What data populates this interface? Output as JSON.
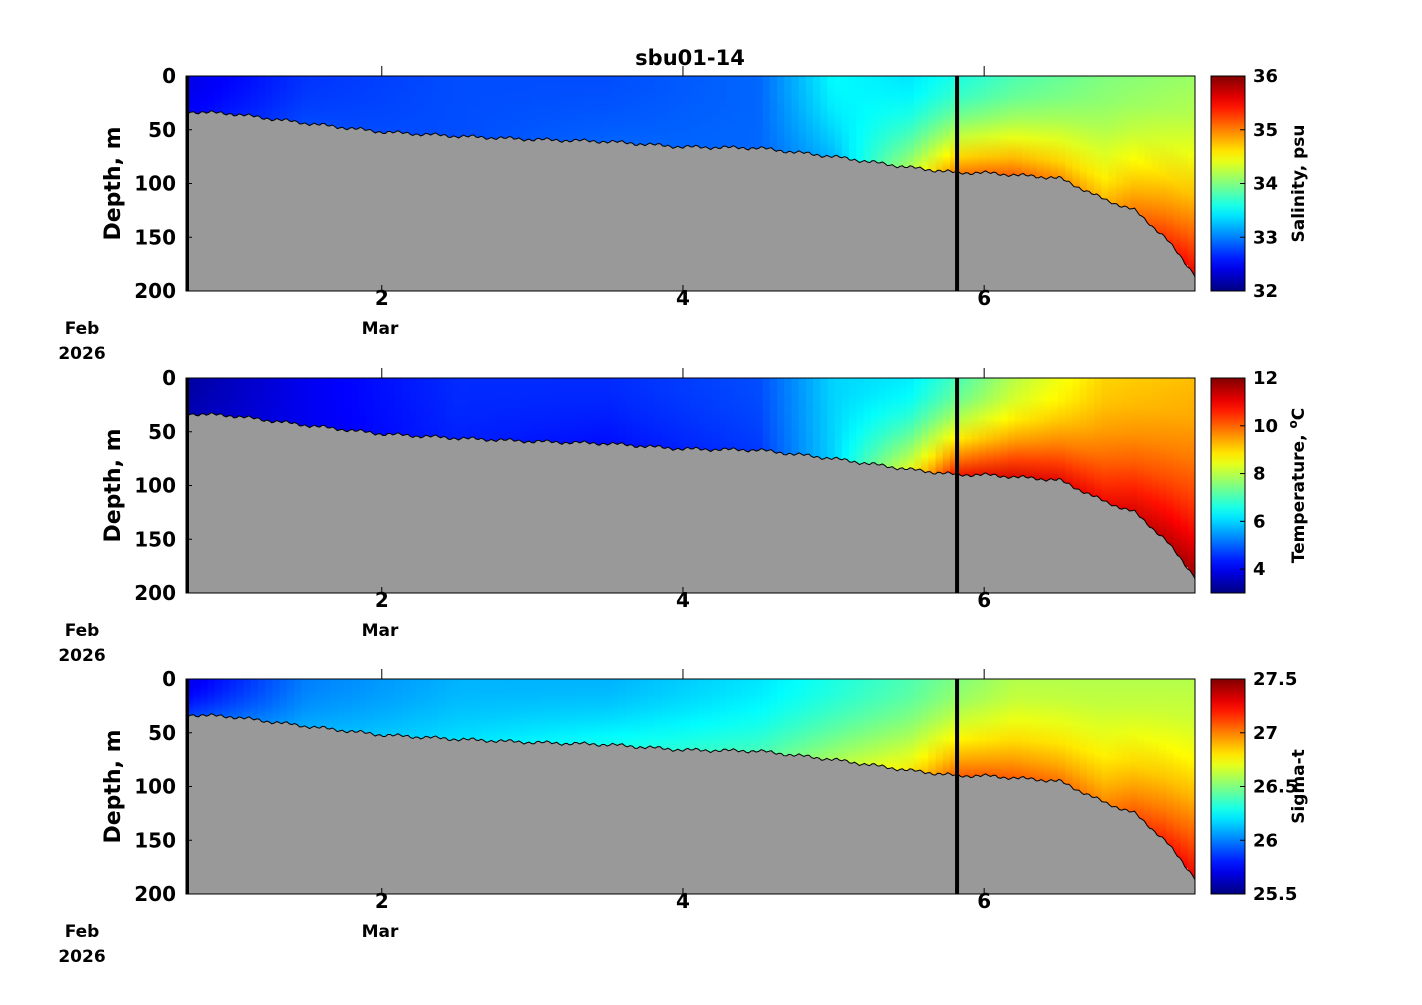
{
  "title": "sbu01-14",
  "date_labels": [
    {
      "month": "Feb",
      "year": "2026"
    },
    {
      "month": "Mar",
      "year": ""
    }
  ],
  "chart_data": [
    {
      "type": "heatmap",
      "title": "sbu01-14",
      "ylabel": "Depth, m",
      "colorbar_label": "Salinity, psu",
      "x_tick_labels": [
        "2",
        "4",
        "6"
      ],
      "x_ticks_days": [
        2,
        4,
        6
      ],
      "xlim_days": [
        0.7,
        7.4
      ],
      "y_ticks": [
        0,
        50,
        100,
        150,
        200
      ],
      "ylim": [
        0,
        200
      ],
      "y_reversed": true,
      "clim": [
        32,
        36
      ],
      "colorbar_ticks": [
        32,
        33,
        34,
        35,
        36
      ],
      "colormap": "jet",
      "bottom_fill_color": "#999999",
      "vertical_marker_day": 5.82,
      "bottom_depth_profile": {
        "x": [
          0.7,
          1.0,
          1.5,
          2.0,
          2.5,
          3.0,
          3.5,
          4.0,
          4.5,
          5.0,
          5.5,
          5.82,
          6.0,
          6.5,
          6.8,
          7.0,
          7.2,
          7.4
        ],
        "depth": [
          33,
          35,
          44,
          52,
          56,
          59,
          61,
          66,
          67,
          75,
          85,
          90,
          90,
          95,
          115,
          125,
          150,
          185
        ]
      },
      "field_estimate": {
        "x": [
          0.7,
          1.5,
          2.5,
          3.5,
          4.5,
          5.0,
          5.5,
          5.82,
          6.2,
          6.8,
          7.4
        ],
        "surface_value": [
          32.4,
          32.7,
          32.8,
          32.8,
          32.9,
          33.5,
          33.4,
          33.6,
          33.8,
          34.0,
          34.1
        ],
        "bottom_value": [
          32.5,
          32.8,
          32.8,
          32.9,
          32.9,
          33.2,
          34.2,
          35.1,
          35.2,
          34.8,
          35.6
        ]
      }
    },
    {
      "type": "heatmap",
      "ylabel": "Depth, m",
      "colorbar_label": "Temperature, ",
      "colorbar_label_sup": "o",
      "colorbar_label_unit": "C",
      "x_tick_labels": [
        "2",
        "4",
        "6"
      ],
      "x_ticks_days": [
        2,
        4,
        6
      ],
      "xlim_days": [
        0.7,
        7.4
      ],
      "y_ticks": [
        0,
        50,
        100,
        150,
        200
      ],
      "ylim": [
        0,
        200
      ],
      "y_reversed": true,
      "clim": [
        3,
        12
      ],
      "colorbar_ticks": [
        4,
        6,
        8,
        10,
        12
      ],
      "colormap": "jet",
      "bottom_fill_color": "#999999",
      "vertical_marker_day": 5.82,
      "bottom_depth_profile": {
        "x": [
          0.7,
          1.0,
          1.5,
          2.0,
          2.5,
          3.0,
          3.5,
          4.0,
          4.5,
          5.0,
          5.5,
          5.82,
          6.0,
          6.5,
          6.8,
          7.0,
          7.2,
          7.4
        ],
        "depth": [
          33,
          35,
          44,
          52,
          56,
          59,
          61,
          66,
          67,
          75,
          85,
          90,
          90,
          95,
          115,
          125,
          150,
          185
        ]
      },
      "field_estimate": {
        "x": [
          0.7,
          1.5,
          2.5,
          3.5,
          4.5,
          5.0,
          5.5,
          5.82,
          6.2,
          6.8,
          7.4
        ],
        "surface_value": [
          3.3,
          4.0,
          4.5,
          4.5,
          4.8,
          6.0,
          6.2,
          7.0,
          8.0,
          9.0,
          9.2
        ],
        "bottom_value": [
          3.5,
          4.0,
          4.4,
          4.2,
          4.6,
          6.0,
          8.5,
          11.0,
          11.3,
          11.0,
          11.8
        ]
      }
    },
    {
      "type": "heatmap",
      "ylabel": "Depth, m",
      "colorbar_label": "Sigma-t",
      "x_tick_labels": [
        "2",
        "4",
        "6"
      ],
      "x_ticks_days": [
        2,
        4,
        6
      ],
      "xlim_days": [
        0.7,
        7.4
      ],
      "y_ticks": [
        0,
        50,
        100,
        150,
        200
      ],
      "ylim": [
        0,
        200
      ],
      "y_reversed": true,
      "clim": [
        25.5,
        27.5
      ],
      "colorbar_ticks": [
        25.5,
        26,
        26.5,
        27,
        27.5
      ],
      "colormap": "jet",
      "bottom_fill_color": "#999999",
      "vertical_marker_day": 5.82,
      "bottom_depth_profile": {
        "x": [
          0.7,
          1.0,
          1.5,
          2.0,
          2.5,
          3.0,
          3.5,
          4.0,
          4.5,
          5.0,
          5.5,
          5.82,
          6.0,
          6.5,
          6.8,
          7.0,
          7.2,
          7.4
        ],
        "depth": [
          33,
          35,
          44,
          52,
          56,
          59,
          61,
          66,
          67,
          75,
          85,
          90,
          90,
          95,
          115,
          125,
          150,
          185
        ]
      },
      "field_estimate": {
        "x": [
          0.7,
          1.5,
          2.5,
          3.5,
          4.5,
          5.0,
          5.5,
          5.82,
          6.2,
          6.8,
          7.4
        ],
        "surface_value": [
          25.7,
          26.0,
          26.1,
          26.1,
          26.2,
          26.3,
          26.4,
          26.5,
          26.6,
          26.6,
          26.6
        ],
        "bottom_value": [
          25.9,
          26.1,
          26.2,
          26.3,
          26.4,
          26.6,
          26.8,
          27.1,
          27.1,
          27.0,
          27.3
        ]
      }
    }
  ]
}
